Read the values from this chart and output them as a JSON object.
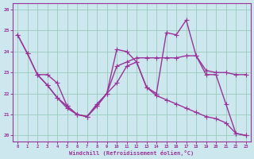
{
  "bg_color": "#cce8ee",
  "line_color": "#993399",
  "grid_color": "#99ccbb",
  "xlabel": "Windchill (Refroidissement éolien,°C)",
  "xlim": [
    -0.5,
    23.5
  ],
  "ylim": [
    19.7,
    26.3
  ],
  "yticks": [
    20,
    21,
    22,
    23,
    24,
    25,
    26
  ],
  "xticks": [
    0,
    1,
    2,
    3,
    4,
    5,
    6,
    7,
    8,
    9,
    10,
    11,
    12,
    13,
    14,
    15,
    16,
    17,
    18,
    19,
    20,
    21,
    22,
    23
  ],
  "line1_x": [
    0,
    1,
    2,
    3,
    4,
    5,
    6,
    7,
    8,
    9,
    10,
    11,
    12,
    13,
    14,
    15,
    16,
    17,
    18,
    19,
    20,
    21,
    22,
    23
  ],
  "line1_y": [
    24.8,
    23.9,
    22.9,
    22.9,
    22.5,
    21.4,
    21.0,
    20.9,
    21.5,
    22.0,
    22.5,
    23.3,
    23.5,
    22.3,
    22.0,
    24.9,
    24.8,
    25.5,
    23.8,
    22.9,
    22.9,
    21.5,
    20.1,
    20.0
  ],
  "line2_x": [
    2,
    3,
    4,
    5,
    6,
    7,
    8,
    9,
    10,
    11,
    12,
    13,
    14,
    15,
    16,
    17,
    18,
    19,
    20,
    21,
    22,
    23
  ],
  "line2_y": [
    22.9,
    22.4,
    21.8,
    21.3,
    21.0,
    20.9,
    21.4,
    22.0,
    23.3,
    23.5,
    23.7,
    23.7,
    23.7,
    23.7,
    23.7,
    23.8,
    23.8,
    23.1,
    23.0,
    23.0,
    22.9,
    22.9
  ],
  "line3_x": [
    0,
    1,
    2,
    3,
    4,
    5,
    6,
    7,
    8,
    9,
    10,
    11,
    12,
    13,
    14,
    15,
    16,
    17,
    18,
    19,
    20,
    21,
    22,
    23
  ],
  "line3_y": [
    24.8,
    23.9,
    22.9,
    22.4,
    21.8,
    21.4,
    21.0,
    20.9,
    21.4,
    22.0,
    24.1,
    24.0,
    23.5,
    22.3,
    21.9,
    21.7,
    21.5,
    21.3,
    21.1,
    20.9,
    20.8,
    20.6,
    20.1,
    20.0
  ]
}
